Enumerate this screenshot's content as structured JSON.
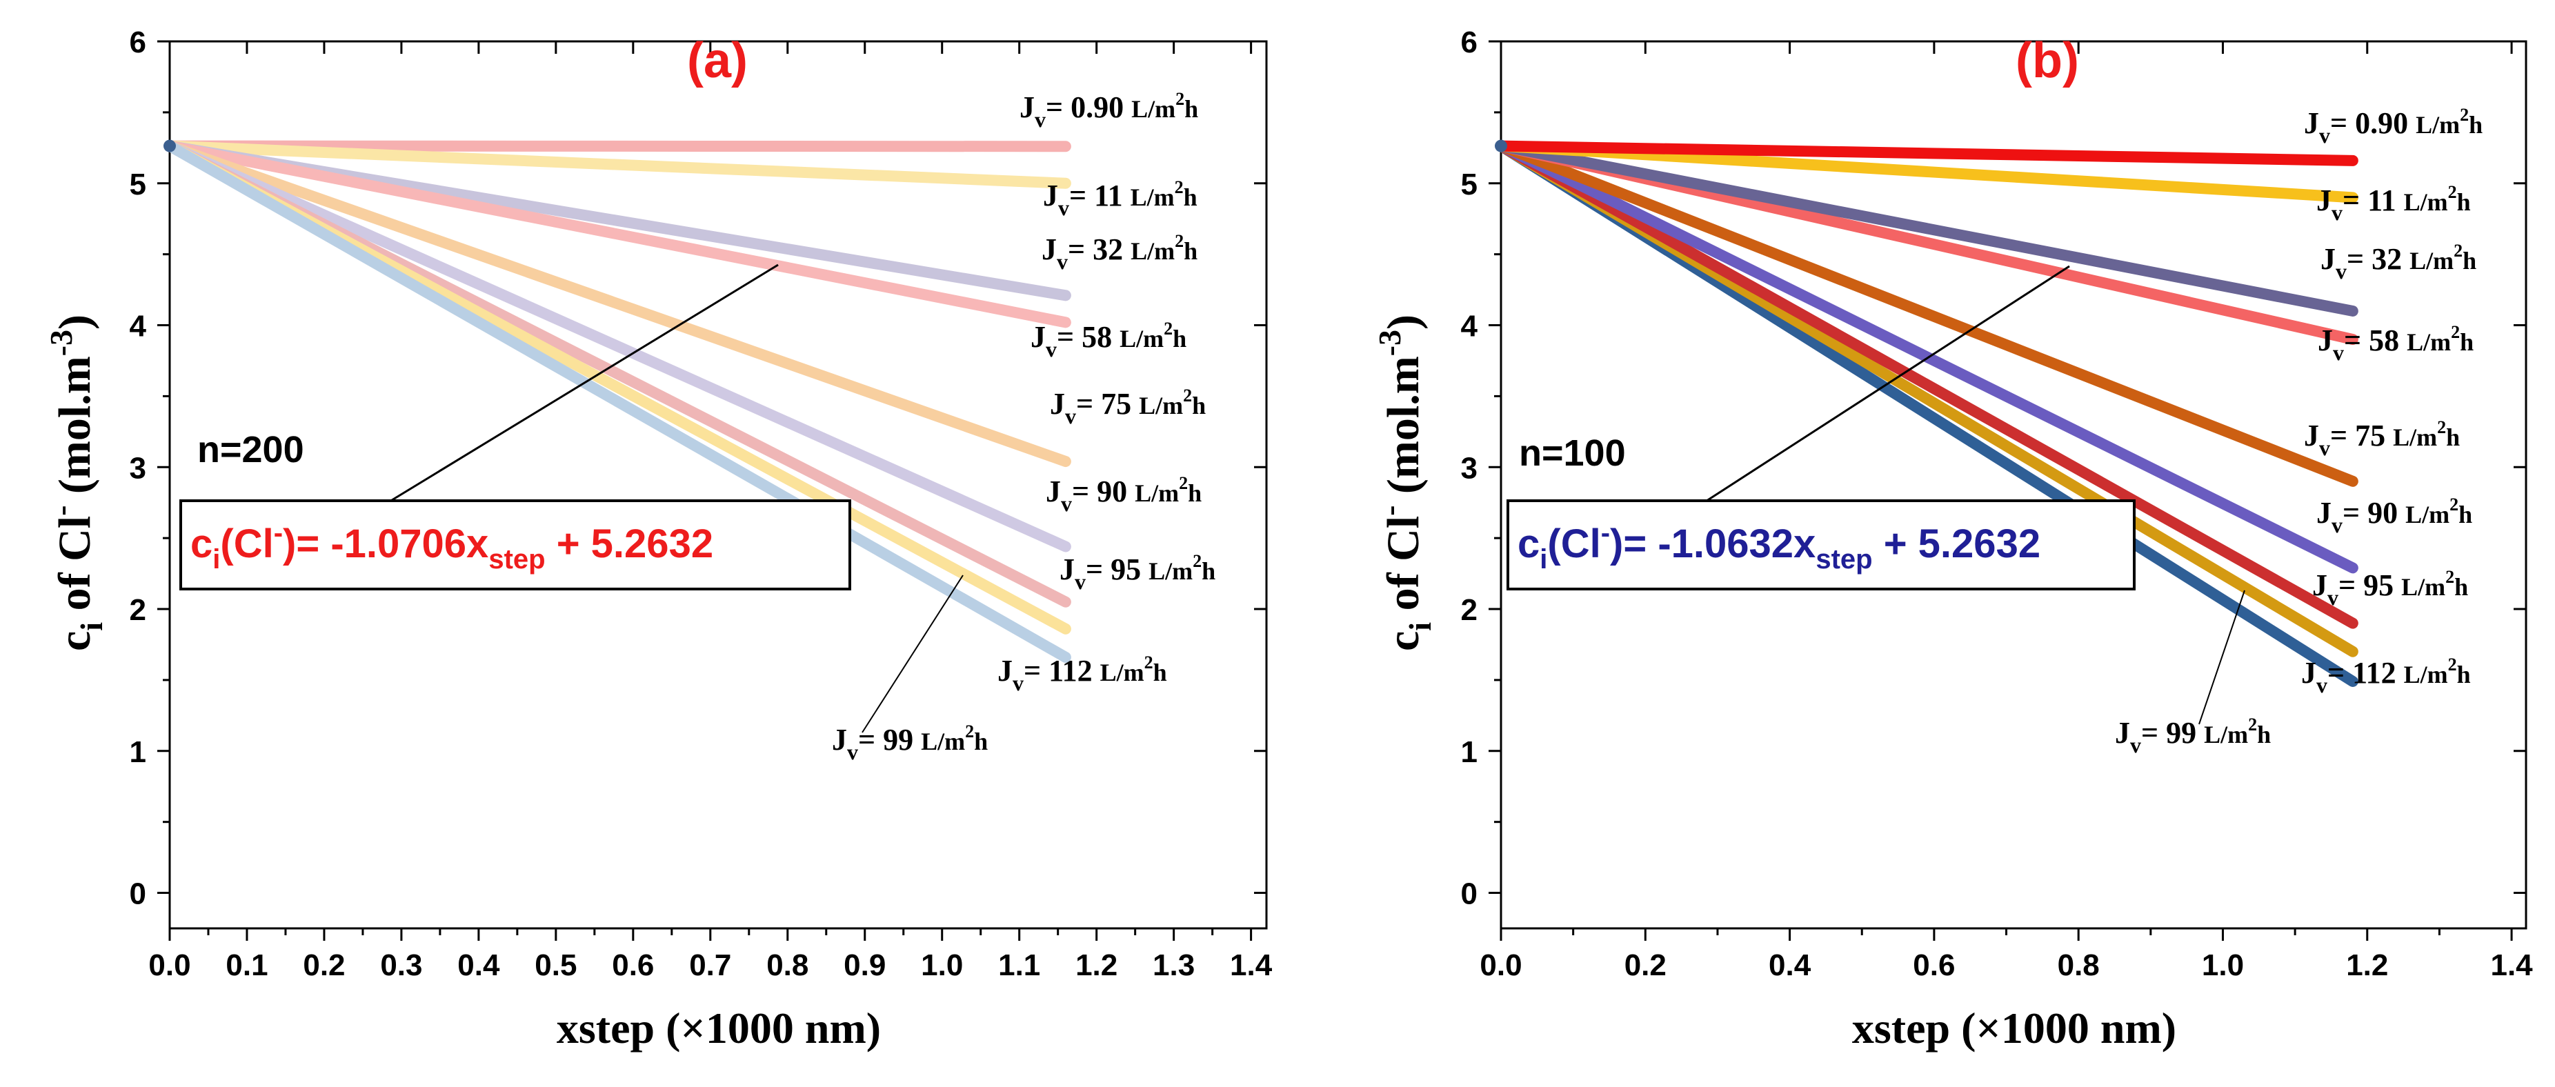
{
  "colors": {
    "panel_a_title": "#ee1c1c",
    "panel_b_title": "#ee1c1c",
    "panel_a_equation": "#ee1c1c",
    "panel_b_equation": "#1f1f96",
    "axis": "#000000"
  },
  "chart_data": [
    {
      "type": "line",
      "panel": "(a)",
      "n_label": "n=200",
      "xlabel": "xstep (×1000 nm)",
      "ylabel": {
        "main": "c",
        "sub": "i",
        "mid": " of Cl",
        "sup": "-",
        "unit": " (mol.m",
        "unit_sup": "-3",
        "close": ")"
      },
      "xlim": [
        0,
        1.42
      ],
      "ylim": [
        -0.25,
        6
      ],
      "xticks": [
        "0.0",
        "0.1",
        "0.2",
        "0.3",
        "0.4",
        "0.5",
        "0.6",
        "0.7",
        "0.8",
        "0.9",
        "1.0",
        "1.1",
        "1.2",
        "1.3",
        "1.4"
      ],
      "xtick_values": [
        0,
        0.1,
        0.2,
        0.3,
        0.4,
        0.5,
        0.6,
        0.7,
        0.8,
        0.9,
        1.0,
        1.1,
        1.2,
        1.3,
        1.4
      ],
      "yticks": [
        "0",
        "1",
        "2",
        "3",
        "4",
        "5",
        "6"
      ],
      "ytick_values": [
        0,
        1,
        2,
        3,
        4,
        5,
        6
      ],
      "equation": {
        "c": "c",
        "i": "i",
        "ion": "(Cl",
        "ion_sup": "-",
        "mid": ")= -1.0706x",
        "step": "step",
        "end": " + 5.2632"
      },
      "start": {
        "x": 0,
        "y": 5.2632
      },
      "series": [
        {
          "name": "0.90",
          "x_end": 1.16,
          "y_end": 5.26,
          "color": "#f6b0b0"
        },
        {
          "name": "11",
          "x_end": 1.16,
          "y_end": 5.0,
          "color": "#fbe6a6"
        },
        {
          "name": "32",
          "x_end": 1.16,
          "y_end": 4.21,
          "color": "#c8c4dc"
        },
        {
          "name": "58",
          "x_end": 1.16,
          "y_end": 4.02,
          "color": "#f8b7b7"
        },
        {
          "name": "75",
          "x_end": 1.16,
          "y_end": 3.04,
          "color": "#f8cf9f"
        },
        {
          "name": "90",
          "x_end": 1.16,
          "y_end": 2.44,
          "color": "#cfc9e3"
        },
        {
          "name": "95",
          "x_end": 1.16,
          "y_end": 2.05,
          "color": "#efb6b6"
        },
        {
          "name": "99",
          "x_end": 1.16,
          "y_end": 1.86,
          "color": "#fbe29a"
        },
        {
          "name": "112",
          "x_end": 1.16,
          "y_end": 1.66,
          "color": "#b9cfe4"
        }
      ],
      "labels": [
        {
          "n": "0.90",
          "unit": "L/m",
          "sup": "2",
          "h": "h"
        },
        {
          "n": "11",
          "unit": "L/m",
          "sup": "2",
          "h": "h"
        },
        {
          "n": "32",
          "unit": "L/m",
          "sup": "2",
          "h": "h"
        },
        {
          "n": "58",
          "unit": "L/m",
          "sup": "2",
          "h": "h"
        },
        {
          "n": "75",
          "unit": "L/m",
          "sup": "2",
          "h": "h"
        },
        {
          "n": "90",
          "unit": "L/m",
          "sup": "2",
          "h": "h"
        },
        {
          "n": "95",
          "unit": "L/m",
          "sup": "2",
          "h": "h"
        },
        {
          "n": "112",
          "unit": "L/m",
          "sup": "2",
          "h": "h"
        },
        {
          "n": "99",
          "unit": "L/m",
          "sup": "2",
          "h": "h"
        }
      ]
    },
    {
      "type": "line",
      "panel": "(b)",
      "n_label": "n=100",
      "xlabel": "xstep (×1000 nm)",
      "ylabel": {
        "main": "c",
        "sub": "i",
        "mid": " of Cl",
        "sup": "-",
        "unit": " (mol.m",
        "unit_sup": "-3",
        "close": ")"
      },
      "xlim": [
        0,
        1.42
      ],
      "ylim": [
        -0.25,
        6
      ],
      "xticks": [
        "0.0",
        "0.2",
        "0.4",
        "0.6",
        "0.8",
        "1.0",
        "1.2",
        "1.4"
      ],
      "xtick_values": [
        0,
        0.2,
        0.4,
        0.6,
        0.8,
        1.0,
        1.2,
        1.4
      ],
      "yticks": [
        "0",
        "1",
        "2",
        "3",
        "4",
        "5",
        "6"
      ],
      "ytick_values": [
        0,
        1,
        2,
        3,
        4,
        5,
        6
      ],
      "equation": {
        "c": "c",
        "i": "i",
        "ion": "(Cl",
        "ion_sup": "-",
        "mid": ")= -1.0632x",
        "step": "step",
        "end": " + 5.2632"
      },
      "start": {
        "x": 0,
        "y": 5.2632
      },
      "series": [
        {
          "name": "112",
          "x_end": 1.18,
          "y_end": 1.49,
          "color": "#2f5f96"
        },
        {
          "name": "99",
          "x_end": 1.18,
          "y_end": 1.7,
          "color": "#d49a12"
        },
        {
          "name": "95",
          "x_end": 1.18,
          "y_end": 1.9,
          "color": "#cc2f2f"
        },
        {
          "name": "90",
          "x_end": 1.18,
          "y_end": 2.29,
          "color": "#6a5cc0"
        },
        {
          "name": "75",
          "x_end": 1.18,
          "y_end": 2.9,
          "color": "#cc5f12"
        },
        {
          "name": "58",
          "x_end": 1.18,
          "y_end": 3.9,
          "color": "#f46464"
        },
        {
          "name": "32",
          "x_end": 1.18,
          "y_end": 4.1,
          "color": "#686494"
        },
        {
          "name": "11",
          "x_end": 1.18,
          "y_end": 4.9,
          "color": "#f7c01c"
        },
        {
          "name": "0.90",
          "x_end": 1.18,
          "y_end": 5.16,
          "color": "#ee1111"
        }
      ],
      "labels": [
        {
          "n": "0.90",
          "unit": "L/m",
          "sup": "2",
          "h": "h"
        },
        {
          "n": "11",
          "unit": "L/m",
          "sup": "2",
          "h": "h"
        },
        {
          "n": "32",
          "unit": "L/m",
          "sup": "2",
          "h": "h"
        },
        {
          "n": "58",
          "unit": "L/m",
          "sup": "2",
          "h": "h"
        },
        {
          "n": "75",
          "unit": "L/m",
          "sup": "2",
          "h": "h"
        },
        {
          "n": "90",
          "unit": "L/m",
          "sup": "2",
          "h": "h"
        },
        {
          "n": "95",
          "unit": "L/m",
          "sup": "2",
          "h": "h"
        },
        {
          "n": "112",
          "unit": "L/m",
          "sup": "2",
          "h": "h"
        },
        {
          "n": "99",
          "unit": "L/m",
          "sup": "2",
          "h": "h"
        }
      ]
    }
  ]
}
